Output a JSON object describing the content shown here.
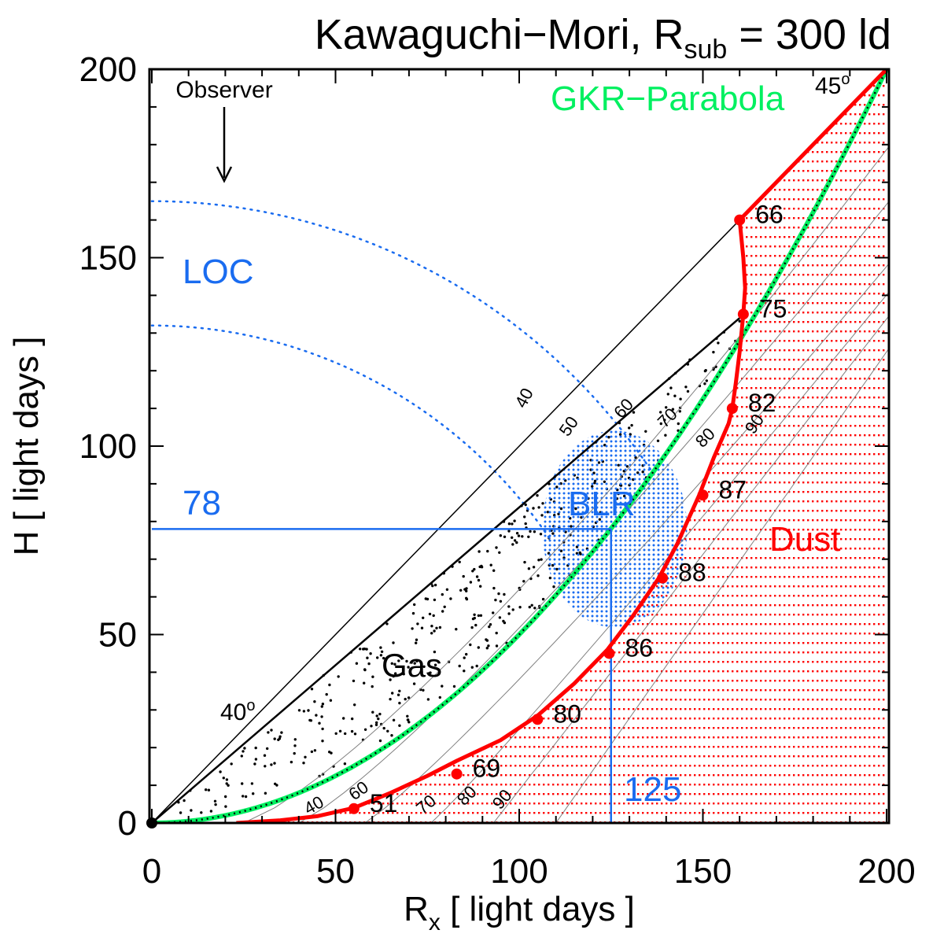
{
  "chart_data": {
    "type": "line",
    "title": "Kawaguchi−Mori, R",
    "title_sub": "sub",
    "title_suffix": " = 300 ld",
    "xlabel": "R",
    "xlabel_sub": "x",
    "xlabel_suffix": "  [ light days ]",
    "ylabel": "H  [ light days ]",
    "xlim": [
      0,
      200
    ],
    "ylim": [
      0,
      200
    ],
    "x_ticks": [
      0,
      50,
      100,
      150,
      200
    ],
    "y_ticks": [
      0,
      50,
      100,
      150,
      200
    ],
    "x_tick_labels": [
      "0",
      "50",
      "100",
      "150",
      "200"
    ],
    "y_tick_labels": [
      "0",
      "50",
      "100",
      "150",
      "200"
    ],
    "colors": {
      "red": "#ff0000",
      "blue": "#1a6cf0",
      "green": "#00f060",
      "black": "#000000",
      "grey": "#808080"
    },
    "series": [
      {
        "name": "Dust boundary",
        "color": "#ff0000",
        "points": [
          [
            23,
            0
          ],
          [
            35,
            0.7
          ],
          [
            45,
            1.8
          ],
          [
            55,
            4
          ],
          [
            65,
            8
          ],
          [
            75,
            12.5
          ],
          [
            83,
            16.5
          ],
          [
            95,
            22
          ],
          [
            105,
            28.5
          ],
          [
            115,
            37
          ],
          [
            124,
            46
          ],
          [
            131,
            55
          ],
          [
            138,
            65
          ],
          [
            143,
            74
          ],
          [
            149,
            87
          ],
          [
            153,
            97
          ],
          [
            157,
            106
          ],
          [
            158,
            110
          ],
          [
            159,
            117
          ],
          [
            160,
            125
          ],
          [
            161,
            135
          ],
          [
            161.5,
            142
          ],
          [
            161,
            150
          ],
          [
            160,
            160
          ],
          [
            200,
            200
          ]
        ]
      },
      {
        "name": "Dust boundary markers",
        "color": "#ff0000",
        "markers": [
          {
            "x": 160,
            "y": 160,
            "label": "66"
          },
          {
            "x": 161,
            "y": 135,
            "label": "75"
          },
          {
            "x": 158,
            "y": 110,
            "label": "82"
          },
          {
            "x": 150,
            "y": 87,
            "label": "87"
          },
          {
            "x": 139,
            "y": 65,
            "label": "88"
          },
          {
            "x": 124.5,
            "y": 45,
            "label": "86"
          },
          {
            "x": 105,
            "y": 27.5,
            "label": "80"
          },
          {
            "x": 83,
            "y": 13,
            "label": "69"
          },
          {
            "x": 55,
            "y": 3.8,
            "label": "51"
          }
        ]
      },
      {
        "name": "GKR-Parabola",
        "color": "#00f060",
        "formula": "H = R^2 / 200"
      },
      {
        "name": "40° line",
        "color": "#000000",
        "from": [
          0,
          0
        ],
        "to": [
          160,
          134
        ]
      },
      {
        "name": "45° line",
        "color": "#000000",
        "from": [
          0,
          0
        ],
        "to": [
          200,
          200
        ]
      }
    ],
    "inclination_curves": [
      {
        "label": "40",
        "color": "#808080"
      },
      {
        "label": "50",
        "color": "#808080"
      },
      {
        "label": "60",
        "color": "#808080"
      },
      {
        "label": "70",
        "color": "#808080"
      },
      {
        "label": "80",
        "color": "#808080"
      },
      {
        "label": "90",
        "color": "#808080"
      }
    ],
    "reference_lines": {
      "R_BLR": 125,
      "R_BLR_label": "125",
      "H_BLR": 78,
      "H_BLR_label": "78"
    },
    "loc_arcs": {
      "radii": [
        165,
        132
      ]
    },
    "annotations": {
      "observer": "Observer",
      "loc": "LOC",
      "blr": "BLR",
      "gas": "Gas",
      "dust": "Dust",
      "gkr": "GKR−Parabola",
      "angle_40": "40",
      "angle_45": "45",
      "degree": "o"
    }
  }
}
